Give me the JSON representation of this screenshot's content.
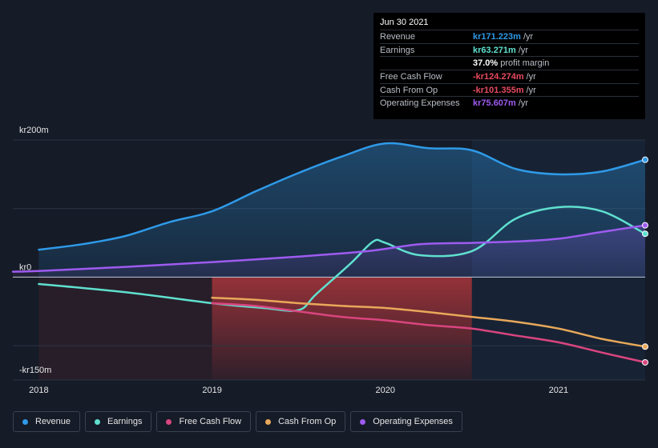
{
  "tooltip": {
    "date": "Jun 30 2021",
    "rows": [
      {
        "label": "Revenue",
        "value": "kr171.223m",
        "unit": "/yr",
        "color": "#2f9ae8"
      },
      {
        "label": "Earnings",
        "value": "kr63.271m",
        "unit": "/yr",
        "color": "#5fe0cf"
      },
      {
        "label": "",
        "value": "37.0%",
        "unit": "profit margin",
        "color": "#ffffff"
      },
      {
        "label": "Free Cash Flow",
        "value": "-kr124.274m",
        "unit": "/yr",
        "color": "#e84a5f"
      },
      {
        "label": "Cash From Op",
        "value": "-kr101.355m",
        "unit": "/yr",
        "color": "#e84a5f"
      },
      {
        "label": "Operating Expenses",
        "value": "kr75.607m",
        "unit": "/yr",
        "color": "#9e5bf0"
      }
    ]
  },
  "legend": [
    {
      "label": "Revenue",
      "color": "#2f9ae8"
    },
    {
      "label": "Earnings",
      "color": "#5fe0cf"
    },
    {
      "label": "Free Cash Flow",
      "color": "#d9457f"
    },
    {
      "label": "Cash From Op",
      "color": "#e8a85a"
    },
    {
      "label": "Operating Expenses",
      "color": "#9e5bf0"
    }
  ],
  "chart_data": {
    "type": "area",
    "currency_prefix": "kr",
    "ylabels": [
      "kr200m",
      "kr0",
      "-kr150m"
    ],
    "xlabels": [
      {
        "label": "2018",
        "x": 2018.0
      },
      {
        "label": "2019",
        "x": 2019.0
      },
      {
        "label": "2020",
        "x": 2020.0
      },
      {
        "label": "2021",
        "x": 2021.0
      }
    ],
    "ylim": [
      -150,
      200
    ],
    "xlim": [
      2017.85,
      2021.5
    ],
    "grid": true,
    "forecast_shade_start": 2020.5,
    "series": [
      {
        "name": "Revenue",
        "color": "#2f9ae8",
        "fill": true,
        "points": [
          [
            2018.0,
            40
          ],
          [
            2018.25,
            48
          ],
          [
            2018.5,
            60
          ],
          [
            2018.75,
            80
          ],
          [
            2019.0,
            96
          ],
          [
            2019.25,
            125
          ],
          [
            2019.5,
            152
          ],
          [
            2019.75,
            176
          ],
          [
            2020.0,
            195
          ],
          [
            2020.25,
            188
          ],
          [
            2020.5,
            185
          ],
          [
            2020.75,
            158
          ],
          [
            2021.0,
            150
          ],
          [
            2021.25,
            154
          ],
          [
            2021.5,
            171.223
          ]
        ]
      },
      {
        "name": "Earnings",
        "color": "#5fe0cf",
        "fill": false,
        "points": [
          [
            2018.0,
            -10
          ],
          [
            2018.5,
            -22
          ],
          [
            2019.0,
            -38
          ],
          [
            2019.3,
            -45
          ],
          [
            2019.5,
            -48
          ],
          [
            2019.6,
            -25
          ],
          [
            2019.8,
            20
          ],
          [
            2019.93,
            52
          ],
          [
            2020.0,
            50
          ],
          [
            2020.2,
            32
          ],
          [
            2020.5,
            38
          ],
          [
            2020.75,
            85
          ],
          [
            2021.0,
            102
          ],
          [
            2021.25,
            96
          ],
          [
            2021.5,
            63.271
          ]
        ]
      },
      {
        "name": "Free Cash Flow",
        "color": "#d9457f",
        "fill": false,
        "points": [
          [
            2019.0,
            -38
          ],
          [
            2019.25,
            -42
          ],
          [
            2019.5,
            -50
          ],
          [
            2019.75,
            -58
          ],
          [
            2020.0,
            -63
          ],
          [
            2020.25,
            -70
          ],
          [
            2020.5,
            -75
          ],
          [
            2020.75,
            -85
          ],
          [
            2021.0,
            -95
          ],
          [
            2021.25,
            -110
          ],
          [
            2021.5,
            -124.274
          ]
        ]
      },
      {
        "name": "Cash From Op",
        "color": "#e8a85a",
        "fill": false,
        "points": [
          [
            2019.0,
            -30
          ],
          [
            2019.25,
            -33
          ],
          [
            2019.5,
            -38
          ],
          [
            2019.75,
            -42
          ],
          [
            2020.0,
            -45
          ],
          [
            2020.25,
            -51
          ],
          [
            2020.5,
            -58
          ],
          [
            2020.75,
            -65
          ],
          [
            2021.0,
            -75
          ],
          [
            2021.25,
            -90
          ],
          [
            2021.5,
            -101.355
          ]
        ]
      },
      {
        "name": "Operating Expenses",
        "color": "#9e5bf0",
        "fill": true,
        "points": [
          [
            2017.85,
            8
          ],
          [
            2018.0,
            9
          ],
          [
            2018.5,
            15
          ],
          [
            2019.0,
            22
          ],
          [
            2019.5,
            30
          ],
          [
            2019.9,
            38
          ],
          [
            2020.2,
            48
          ],
          [
            2020.5,
            50
          ],
          [
            2020.75,
            52
          ],
          [
            2021.0,
            56
          ],
          [
            2021.25,
            66
          ],
          [
            2021.5,
            75.607
          ]
        ]
      }
    ]
  }
}
